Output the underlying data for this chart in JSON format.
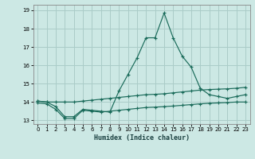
{
  "xlabel": "Humidex (Indice chaleur)",
  "bg_color": "#cce8e4",
  "grid_color": "#aaccc8",
  "line_color": "#1a6b5a",
  "xlim": [
    -0.5,
    23.5
  ],
  "ylim": [
    12.8,
    19.3
  ],
  "yticks": [
    13,
    14,
    15,
    16,
    17,
    18,
    19
  ],
  "xticks": [
    0,
    1,
    2,
    3,
    4,
    5,
    6,
    7,
    8,
    9,
    10,
    11,
    12,
    13,
    14,
    15,
    16,
    17,
    18,
    19,
    20,
    21,
    22,
    23
  ],
  "series": [
    {
      "x": [
        0,
        1,
        2,
        3,
        4,
        5,
        6,
        7,
        8,
        9,
        10,
        11,
        12,
        13,
        14,
        15,
        16,
        17,
        18,
        19,
        20,
        21,
        22,
        23
      ],
      "y": [
        14.05,
        14.0,
        14.0,
        14.0,
        14.0,
        14.05,
        14.1,
        14.15,
        14.2,
        14.25,
        14.3,
        14.35,
        14.4,
        14.42,
        14.45,
        14.5,
        14.55,
        14.6,
        14.65,
        14.68,
        14.7,
        14.72,
        14.75,
        14.8
      ]
    },
    {
      "x": [
        0,
        1,
        2,
        3,
        4,
        5,
        6,
        7,
        8,
        9,
        10,
        11,
        12,
        13,
        14,
        15,
        16,
        17,
        18,
        19,
        20,
        21,
        22,
        23
      ],
      "y": [
        14.05,
        14.0,
        13.75,
        13.2,
        13.2,
        13.6,
        13.55,
        13.5,
        13.45,
        14.6,
        15.5,
        16.4,
        17.5,
        17.5,
        18.85,
        17.5,
        16.5,
        15.9,
        14.75,
        14.4,
        14.3,
        14.2,
        14.3,
        14.4
      ]
    },
    {
      "x": [
        0,
        1,
        2,
        3,
        4,
        5,
        6,
        7,
        8,
        9,
        10,
        11,
        12,
        13,
        14,
        15,
        16,
        17,
        18,
        19,
        20,
        21,
        22,
        23
      ],
      "y": [
        13.95,
        13.9,
        13.6,
        13.1,
        13.1,
        13.55,
        13.5,
        13.45,
        13.5,
        13.55,
        13.6,
        13.65,
        13.7,
        13.72,
        13.75,
        13.78,
        13.82,
        13.86,
        13.9,
        13.93,
        13.95,
        13.97,
        14.0,
        14.0
      ]
    }
  ]
}
